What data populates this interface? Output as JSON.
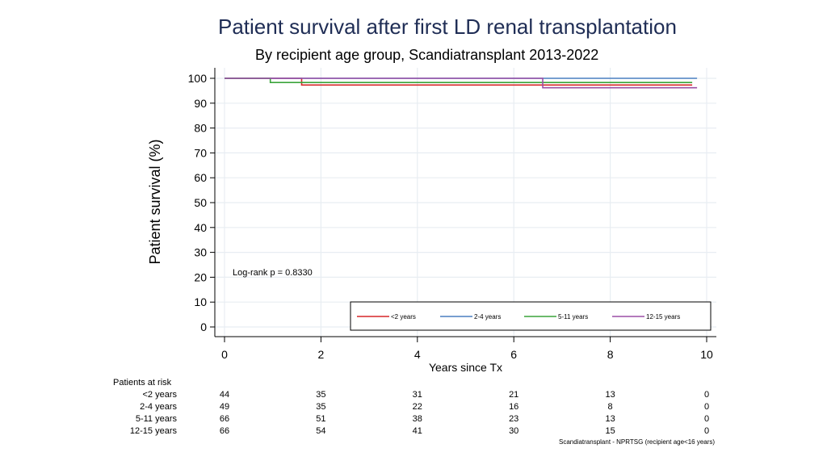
{
  "chart_data": {
    "type": "line",
    "step": true,
    "title": "Patient survival after first LD renal transplantation",
    "subtitle": "By recipient age group, Scandiatransplant 2013-2022",
    "xlabel": "Years since Tx",
    "ylabel": "Patient survival (%)",
    "xlim": [
      0,
      10
    ],
    "ylim": [
      0,
      100
    ],
    "xticks": [
      0,
      2,
      4,
      6,
      8,
      10
    ],
    "yticks": [
      0,
      10,
      20,
      30,
      40,
      50,
      60,
      70,
      80,
      90,
      100
    ],
    "grid": true,
    "annotation": "Log-rank p = 0.8330",
    "legend_position": "bottom-right",
    "series": [
      {
        "name": "<2 years",
        "color": "#d62728",
        "x": [
          0,
          1.6,
          1.6,
          9.7
        ],
        "y": [
          100,
          100,
          97.3,
          97.3
        ]
      },
      {
        "name": "2-4 years",
        "color": "#4a7fc1",
        "x": [
          0,
          9.8
        ],
        "y": [
          100,
          100
        ]
      },
      {
        "name": "5-11 years",
        "color": "#3aa43a",
        "x": [
          0,
          0.95,
          0.95,
          9.7
        ],
        "y": [
          100,
          100,
          98.3,
          98.3
        ]
      },
      {
        "name": "12-15 years",
        "color": "#9b4fa6",
        "x": [
          0,
          6.6,
          6.6,
          9.8
        ],
        "y": [
          100,
          100,
          96.2,
          96.2
        ]
      }
    ]
  },
  "risk_table": {
    "heading": "Patients at risk",
    "times": [
      0,
      2,
      4,
      6,
      8,
      10
    ],
    "rows": [
      {
        "label": "<2 years",
        "values": [
          "44",
          "35",
          "31",
          "21",
          "13",
          "0"
        ]
      },
      {
        "label": "2-4 years",
        "values": [
          "49",
          "35",
          "22",
          "16",
          "8",
          "0"
        ]
      },
      {
        "label": "5-11 years",
        "values": [
          "66",
          "51",
          "38",
          "23",
          "13",
          "0"
        ]
      },
      {
        "label": "12-15 years",
        "values": [
          "66",
          "54",
          "41",
          "30",
          "15",
          "0"
        ]
      }
    ]
  },
  "footnote": "Scandiatransplant - NPRTSG (recipient age<16 years)"
}
